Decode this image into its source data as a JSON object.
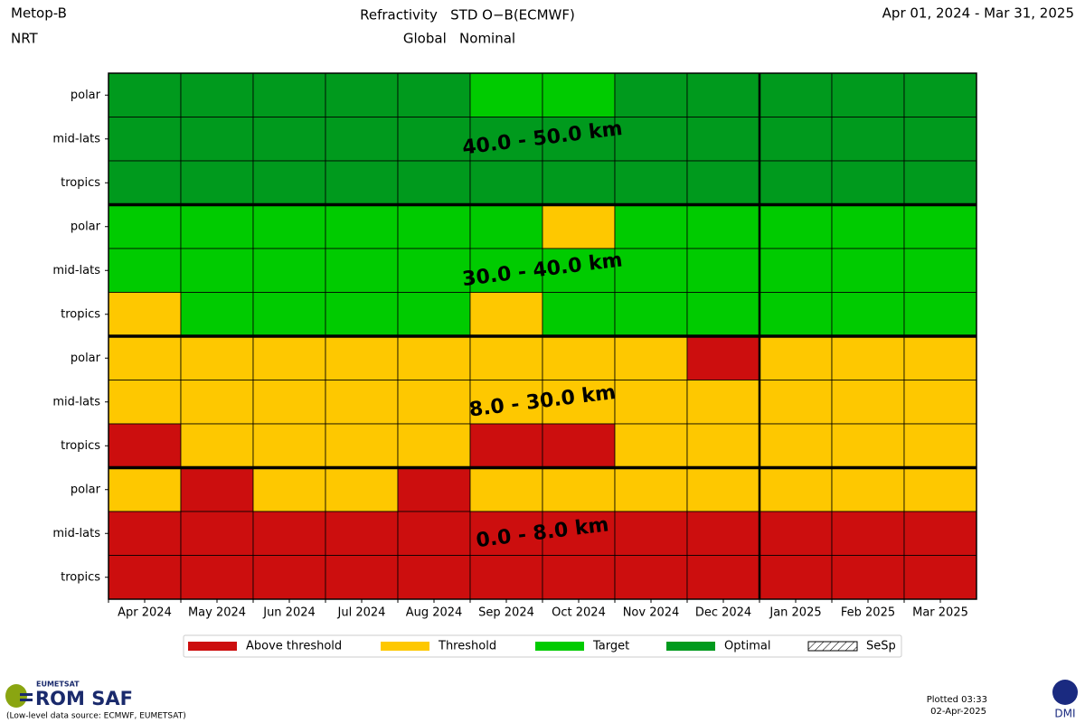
{
  "chart_data": {
    "type": "heatmap",
    "satellite": "Metop-B",
    "mode": "NRT",
    "title": "Refractivity   STD O−B(ECMWF)",
    "subtitle": "Global   Nominal",
    "period": "Apr 01, 2024 - Mar 31, 2025",
    "categories": [
      "Apr 2024",
      "May 2024",
      "Jun 2024",
      "Jul 2024",
      "Aug 2024",
      "Sep 2024",
      "Oct 2024",
      "Nov 2024",
      "Dec 2024",
      "Jan 2025",
      "Feb 2025",
      "Mar 2025"
    ],
    "legend": [
      {
        "name": "Above threshold",
        "color": "#cc0e0e"
      },
      {
        "name": "Threshold",
        "color": "#fec800"
      },
      {
        "name": "Target",
        "color": "#00cb00"
      },
      {
        "name": "Optimal",
        "color": "#009a1d"
      },
      {
        "name": "SeSp",
        "color": "hatch"
      }
    ],
    "bands": [
      {
        "label": "40.0 - 50.0 km",
        "rows": [
          {
            "name": "polar",
            "values": [
              "Optimal",
              "Optimal",
              "Optimal",
              "Optimal",
              "Optimal",
              "Target",
              "Target",
              "Optimal",
              "Optimal",
              "Optimal",
              "Optimal",
              "Optimal"
            ]
          },
          {
            "name": "mid-lats",
            "values": [
              "Optimal",
              "Optimal",
              "Optimal",
              "Optimal",
              "Optimal",
              "Optimal",
              "Optimal",
              "Optimal",
              "Optimal",
              "Optimal",
              "Optimal",
              "Optimal"
            ]
          },
          {
            "name": "tropics",
            "values": [
              "Optimal",
              "Optimal",
              "Optimal",
              "Optimal",
              "Optimal",
              "Optimal",
              "Optimal",
              "Optimal",
              "Optimal",
              "Optimal",
              "Optimal",
              "Optimal"
            ]
          }
        ]
      },
      {
        "label": "30.0 - 40.0 km",
        "rows": [
          {
            "name": "polar",
            "values": [
              "Target",
              "Target",
              "Target",
              "Target",
              "Target",
              "Target",
              "Threshold",
              "Target",
              "Target",
              "Target",
              "Target",
              "Target"
            ]
          },
          {
            "name": "mid-lats",
            "values": [
              "Target",
              "Target",
              "Target",
              "Target",
              "Target",
              "Target",
              "Target",
              "Target",
              "Target",
              "Target",
              "Target",
              "Target"
            ]
          },
          {
            "name": "tropics",
            "values": [
              "Threshold",
              "Target",
              "Target",
              "Target",
              "Target",
              "Threshold",
              "Target",
              "Target",
              "Target",
              "Target",
              "Target",
              "Target"
            ]
          }
        ]
      },
      {
        "label": "8.0 - 30.0 km",
        "rows": [
          {
            "name": "polar",
            "values": [
              "Threshold",
              "Threshold",
              "Threshold",
              "Threshold",
              "Threshold",
              "Threshold",
              "Threshold",
              "Threshold",
              "Above threshold",
              "Threshold",
              "Threshold",
              "Threshold"
            ]
          },
          {
            "name": "mid-lats",
            "values": [
              "Threshold",
              "Threshold",
              "Threshold",
              "Threshold",
              "Threshold",
              "Threshold",
              "Threshold",
              "Threshold",
              "Threshold",
              "Threshold",
              "Threshold",
              "Threshold"
            ]
          },
          {
            "name": "tropics",
            "values": [
              "Above threshold",
              "Threshold",
              "Threshold",
              "Threshold",
              "Threshold",
              "Above threshold",
              "Above threshold",
              "Threshold",
              "Threshold",
              "Threshold",
              "Threshold",
              "Threshold"
            ]
          }
        ]
      },
      {
        "label": "0.0 - 8.0 km",
        "rows": [
          {
            "name": "polar",
            "values": [
              "Threshold",
              "Above threshold",
              "Threshold",
              "Threshold",
              "Above threshold",
              "Threshold",
              "Threshold",
              "Threshold",
              "Threshold",
              "Threshold",
              "Threshold",
              "Threshold"
            ]
          },
          {
            "name": "mid-lats",
            "values": [
              "Above threshold",
              "Above threshold",
              "Above threshold",
              "Above threshold",
              "Above threshold",
              "Above threshold",
              "Above threshold",
              "Above threshold",
              "Above threshold",
              "Above threshold",
              "Above threshold",
              "Above threshold"
            ]
          },
          {
            "name": "tropics",
            "values": [
              "Above threshold",
              "Above threshold",
              "Above threshold",
              "Above threshold",
              "Above threshold",
              "Above threshold",
              "Above threshold",
              "Above threshold",
              "Above threshold",
              "Above threshold",
              "Above threshold",
              "Above threshold"
            ]
          }
        ]
      }
    ]
  },
  "footer": {
    "org": "EUMETSAT",
    "logo": "ROM SAF",
    "source": "(Low-level data source: ECMWF, EUMETSAT)",
    "plotted_time": "Plotted 03:33",
    "plotted_date": "02-Apr-2025",
    "institute": "DMI"
  }
}
